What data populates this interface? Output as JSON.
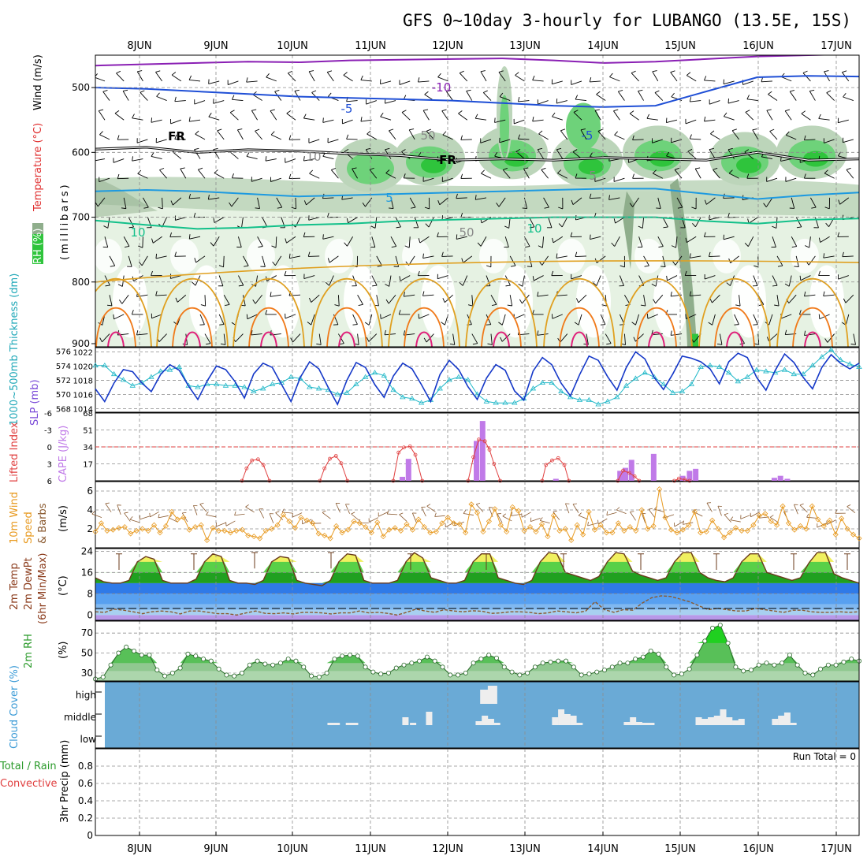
{
  "title": "GFS 0~10day 3-hourly for LUBANGO (13.5E, 15S)",
  "dates": [
    "8JUN",
    "9JUN",
    "10JUN",
    "11JUN",
    "12JUN",
    "13JUN",
    "14JUN",
    "15JUN",
    "16JUN",
    "17JUN"
  ],
  "run_total": "Run Total = 0",
  "colors": {
    "rh_light": "#e6f2e3",
    "rh_mid": "#bcd5ba",
    "rh_dark": "#8fae8c",
    "rh_green": "#6ed27a",
    "rh_bright": "#2fc43c",
    "wind": "#000000",
    "temp_purple": "#8a1fb4",
    "temp_blue": "#1f4fd6",
    "temp_cyan": "#1e9ae0",
    "temp_teal": "#13c08a",
    "temp_gold": "#e0a020",
    "temp_orange": "#f07a1a",
    "temp_magenta": "#e0207a",
    "slp": "#1538c8",
    "thickness": "#20b8c8",
    "cape": "#c07ae8",
    "lifted": "#e04040",
    "wind10": "#e89a20",
    "barb10": "#8a5a30",
    "temp2m": "#2a8a2a",
    "dewpt": "#8a5a30",
    "rh2m": "#38b038",
    "cloud_bg": "#6aaad6",
    "cloud_bar": "#eeeeee"
  },
  "chart_data": [
    {
      "type": "heatmap",
      "name_panel": "upper-air",
      "ylabel_parts": [
        "RH (%)",
        "Temperature (°C)",
        "Wind (m/s)"
      ],
      "ylabel_units": "(millibars)",
      "y_ticks": [
        500,
        600,
        700,
        800,
        900
      ],
      "ylim": [
        900,
        450
      ],
      "contour_labels": [
        "-10",
        "-5",
        "-5",
        "5",
        "10",
        "10",
        "FR",
        "FR",
        "50",
        "50",
        "10",
        "5"
      ],
      "temperature_levels": [
        {
          "label": "-10",
          "p": [
            466,
            464,
            462,
            460,
            461,
            458,
            457,
            456,
            455,
            458,
            462,
            460,
            456,
            452,
            450,
            448
          ]
        },
        {
          "label": "-5",
          "p": [
            500,
            502,
            506,
            510,
            514,
            516,
            518,
            520,
            524,
            528,
            530,
            528,
            506,
            484,
            482,
            483
          ]
        },
        {
          "label": "5",
          "p": [
            660,
            658,
            660,
            664,
            668,
            666,
            664,
            662,
            660,
            658,
            656,
            656,
            664,
            672,
            666,
            662
          ]
        },
        {
          "label": "10",
          "p": [
            705,
            712,
            718,
            716,
            712,
            710,
            706,
            704,
            702,
            700,
            700,
            700,
            706,
            710,
            704,
            702
          ]
        }
      ],
      "freezing_level": [
        595,
        592,
        600,
        596,
        598,
        602,
        605,
        612,
        610,
        612,
        608,
        610,
        612,
        600,
        612,
        610
      ]
    },
    {
      "type": "line",
      "name_panel": "slp-thickness",
      "ylabel_left": "1000~500mb Thickness (dm)",
      "ylabel_right": "SLP (mb)",
      "thickness_ticks": [
        568,
        570,
        572,
        574,
        576
      ],
      "slp_ticks": [
        1014,
        1016,
        1018,
        1020,
        1022
      ],
      "thickness_ylim": [
        567.5,
        576.5
      ],
      "slp_ylim": [
        1013.5,
        1022.6
      ],
      "slp": [
        1016.8,
        1015.0,
        1017.6,
        1019.5,
        1019.2,
        1017.6,
        1016.4,
        1018.8,
        1020.2,
        1019.4,
        1017.2,
        1015.3,
        1017.9,
        1020.0,
        1019.5,
        1017.8,
        1015.5,
        1018.9,
        1020.4,
        1019.8,
        1017.4,
        1015.0,
        1018.4,
        1020.6,
        1019.6,
        1017.0,
        1014.6,
        1018.0,
        1020.5,
        1019.8,
        1017.4,
        1015.6,
        1018.6,
        1020.4,
        1019.6,
        1017.4,
        1015.0,
        1018.8,
        1020.8,
        1019.5,
        1017.1,
        1015.3,
        1018.3,
        1020.2,
        1019.4,
        1016.5,
        1015.2,
        1019.3,
        1021.2,
        1020.2,
        1017.6,
        1015.8,
        1018.8,
        1021.4,
        1020.8,
        1018.5,
        1016.6,
        1019.8,
        1022.0,
        1021.0,
        1018.4,
        1016.7,
        1018.9,
        1021.4,
        1021.1,
        1020.6,
        1019.6,
        1017.5,
        1020.6,
        1021.8,
        1021.2,
        1018.4,
        1016.6,
        1019.4,
        1021.7,
        1020.5,
        1018.4,
        1016.8,
        1019.8,
        1021.6,
        1020.4,
        1019.6,
        1020.4
      ],
      "thickness": [
        574.0,
        574.0,
        572.8,
        572.0,
        571.2,
        571.6,
        572.4,
        573.2,
        573.4,
        573.8,
        571.2,
        571.0,
        571.4,
        571.4,
        571.2,
        571.2,
        571.0,
        570.4,
        570.8,
        571.4,
        571.6,
        572.4,
        572.2,
        571.0,
        570.8,
        570.6,
        570.0,
        570.2,
        571.4,
        572.4,
        573.0,
        572.6,
        570.6,
        569.6,
        569.4,
        568.8,
        569.2,
        570.8,
        572.0,
        572.4,
        572.0,
        570.0,
        569.0,
        568.8,
        568.8,
        568.8,
        569.4,
        570.8,
        571.6,
        571.6,
        570.4,
        569.6,
        569.2,
        569.2,
        568.6,
        569.0,
        569.6,
        571.2,
        572.2,
        573.0,
        572.4,
        571.4,
        570.2,
        570.4,
        571.4,
        573.8,
        574.0,
        573.8,
        573.0,
        571.8,
        572.4,
        573.4,
        573.2,
        573.0,
        573.4,
        572.8,
        572.8,
        574.0,
        575.2,
        576.2,
        574.8,
        574.2,
        573.8
      ]
    },
    {
      "type": "bar",
      "name_panel": "cape-lifted",
      "ylabel_left": "Lifted Index",
      "ylabel_right": "CAPE (J/kg)",
      "li_ticks": [
        "-6",
        "-3",
        "0",
        "3",
        "6"
      ],
      "cape_ticks": [
        "68",
        "51",
        "34",
        "17",
        "0"
      ],
      "cape_ylim": [
        0,
        68
      ],
      "cape": [
        {
          "x": 40.2,
          "v": 4
        },
        {
          "x": 41.0,
          "v": 22
        },
        {
          "x": 49.9,
          "v": 40
        },
        {
          "x": 50.7,
          "v": 60
        },
        {
          "x": 60.3,
          "v": 2
        },
        {
          "x": 68.7,
          "v": 10
        },
        {
          "x": 69.4,
          "v": 13
        },
        {
          "x": 70.2,
          "v": 21
        },
        {
          "x": 73.1,
          "v": 27
        },
        {
          "x": 76.9,
          "v": 5
        },
        {
          "x": 77.8,
          "v": 10
        },
        {
          "x": 78.6,
          "v": 12
        },
        {
          "x": 88.9,
          "v": 3
        },
        {
          "x": 89.7,
          "v": 5
        },
        {
          "x": 90.6,
          "v": 2
        }
      ],
      "li_segments": [
        [
          [
            19.2,
            6
          ],
          [
            19.8,
            3.8
          ],
          [
            20.5,
            2.4
          ],
          [
            21.3,
            2.2
          ],
          [
            22.0,
            3.2
          ],
          [
            22.8,
            6
          ]
        ],
        [
          [
            29.4,
            6
          ],
          [
            30.0,
            3.8
          ],
          [
            30.7,
            2.1
          ],
          [
            31.5,
            1.6
          ],
          [
            32.2,
            2.9
          ],
          [
            33.0,
            6
          ]
        ],
        [
          [
            39.0,
            6
          ],
          [
            39.7,
            1.0
          ],
          [
            40.4,
            0.1
          ],
          [
            41.2,
            -0.1
          ],
          [
            41.9,
            1.4
          ],
          [
            42.8,
            6
          ]
        ],
        [
          [
            48.8,
            6
          ],
          [
            49.5,
            1.8
          ],
          [
            50.2,
            -1.3
          ],
          [
            51.0,
            -1.0
          ],
          [
            51.6,
            0.5
          ],
          [
            52.2,
            3.0
          ],
          [
            53.0,
            6
          ]
        ],
        [
          [
            58.5,
            6
          ],
          [
            59.0,
            3.2
          ],
          [
            59.8,
            2.4
          ],
          [
            60.6,
            2.0
          ],
          [
            61.4,
            3.2
          ],
          [
            62.0,
            6
          ]
        ],
        [
          [
            68.4,
            6
          ],
          [
            69.1,
            4.2
          ],
          [
            69.9,
            4.6
          ],
          [
            70.6,
            5.2
          ],
          [
            71.2,
            6
          ]
        ],
        [
          [
            75.8,
            6
          ],
          [
            76.4,
            5.6
          ],
          [
            77.2,
            5.8
          ],
          [
            77.8,
            6
          ]
        ]
      ]
    },
    {
      "type": "line",
      "name_panel": "wind10",
      "ylabel": "10m Wind Speed & Barbs (m/s)",
      "y_ticks": [
        2,
        4,
        6
      ],
      "ylim": [
        0,
        7
      ],
      "speed": [
        1.7,
        2.6,
        1.8,
        1.9,
        2.1,
        2.2,
        1.5,
        1.8,
        2.0,
        1.8,
        2.4,
        1.6,
        2.3,
        3.8,
        3.0,
        3.2,
        1.9,
        2.2,
        2.4,
        0.8,
        2.1,
        1.8,
        1.8,
        1.6,
        1.8,
        1.9,
        1.3,
        1.2,
        1.0,
        1.8,
        2.0,
        2.4,
        3.5,
        2.8,
        2.1,
        3.2,
        2.9,
        2.6,
        1.5,
        1.3,
        1.0,
        2.3,
        1.6,
        1.9,
        2.8,
        2.6,
        2.2,
        1.6,
        2.7,
        1.2,
        1.9,
        2.1,
        1.8,
        2.5,
        1.9,
        3.0,
        2.2,
        1.6,
        1.7,
        2.6,
        3.2,
        2.6,
        2.5,
        1.6,
        4.6,
        3.7,
        1.7,
        2.8,
        4.1,
        2.4,
        1.7,
        4.3,
        3.9,
        1.8,
        2.2,
        1.7,
        2.5,
        1.2,
        3.4,
        1.8,
        2.0,
        0.8,
        2.4,
        1.4,
        3.8,
        1.9,
        2.4,
        1.6,
        1.6,
        2.6,
        1.8,
        2.2,
        1.8,
        4.0,
        2.0,
        2.3,
        6.2,
        3.2,
        1.9,
        1.6,
        1.9,
        2.4,
        3.8,
        1.6,
        1.7,
        2.9,
        2.0,
        1.1,
        1.6,
        2.1,
        1.8,
        1.8,
        2.4,
        3.4,
        3.6,
        2.8,
        2.4,
        4.4,
        2.6,
        1.9,
        2.3,
        2.0,
        4.4,
        3.0,
        2.3,
        2.9,
        1.4,
        3.1,
        2.0,
        1.4,
        1.0
      ]
    },
    {
      "type": "area",
      "name_panel": "temp2m",
      "ylabel": "2m Temp 2m DewPt (6hr Min/Max) (°C)",
      "y_ticks": [
        0,
        8,
        16,
        24
      ],
      "ylim": [
        -2,
        25
      ],
      "temp": [
        14,
        12.5,
        12,
        12,
        13,
        20,
        22,
        21,
        13,
        12,
        12,
        12,
        13.5,
        20,
        23,
        22,
        13,
        12,
        12,
        11.5,
        13,
        20,
        22,
        21.5,
        13,
        12,
        11.5,
        11,
        13,
        20,
        23,
        22.5,
        13,
        12,
        12,
        12,
        13,
        20,
        23.5,
        21.5,
        14,
        13,
        12,
        12,
        13,
        20,
        23,
        23,
        14,
        13,
        12,
        11.5,
        13,
        20,
        23.5,
        23,
        16,
        15,
        14,
        13,
        14.5,
        20,
        23.5,
        23,
        16.5,
        15,
        14,
        13,
        14,
        20,
        23.5,
        23.5,
        16,
        14,
        13,
        12.5,
        14,
        20,
        23,
        23,
        16,
        15,
        14,
        13,
        14,
        19.5,
        23.5,
        23.5,
        15.5,
        14,
        13,
        12
      ],
      "max_marks": [
        23,
        23,
        23.5,
        23.5,
        23,
        23,
        23,
        23,
        23,
        23,
        23
      ],
      "dewpt": [
        1.2,
        1.0,
        2.2,
        1.8,
        1.2,
        0.5,
        1.2,
        1.5,
        1.2,
        0.4,
        1.5,
        1.5,
        1.0,
        0.5,
        0.5,
        0.0,
        0.8,
        1.5,
        0.6,
        0.5,
        0.8,
        0.4,
        1.0,
        1.0,
        0.8,
        0.4,
        0.8,
        0.8,
        1.5,
        0.8,
        1.0,
        0.6,
        0.0,
        1.0,
        2.2,
        1.5,
        1.0,
        2.0,
        1.5,
        1.2,
        1.6,
        1.4,
        0.6,
        0.8,
        1.2,
        1.2,
        1.0,
        0.5,
        0.8,
        1.5,
        1.2,
        0.8,
        1.5,
        5.0,
        2.0,
        1.0,
        2.0,
        1.8,
        4.5,
        6.5,
        7.2,
        7.0,
        6.0,
        5.0,
        3.5,
        2.0,
        2.5,
        2.0,
        1.5,
        1.5,
        2.5,
        2.0,
        1.5,
        1.0,
        1.8,
        1.8,
        1.2,
        1.0,
        1.0,
        1.2,
        1.0,
        1.2
      ]
    },
    {
      "type": "area",
      "name_panel": "rh2m",
      "ylabel": "2m RH (%)",
      "y_ticks": [
        30,
        50,
        70
      ],
      "ylim": [
        22,
        82
      ],
      "rh": [
        24,
        26,
        38,
        50,
        56,
        52,
        48,
        48,
        33,
        27,
        30,
        35,
        49,
        47,
        44,
        42,
        34,
        28,
        27,
        30,
        38,
        42,
        39,
        38,
        40,
        44,
        42,
        36,
        27,
        26,
        30,
        44,
        47,
        48,
        47,
        36,
        31,
        29,
        30,
        35,
        38,
        40,
        42,
        46,
        42,
        36,
        28,
        28,
        30,
        40,
        44,
        48,
        45,
        36,
        31,
        28,
        30,
        36,
        40,
        41,
        42,
        42,
        36,
        28,
        29,
        31,
        33,
        36,
        40,
        40,
        44,
        46,
        52,
        49,
        36,
        28,
        29,
        34,
        48,
        62,
        75,
        78,
        60,
        36,
        32,
        33,
        38,
        40,
        38,
        40,
        48,
        38,
        30,
        28,
        34,
        38,
        38,
        41,
        44,
        42
      ]
    },
    {
      "type": "bar",
      "name_panel": "cloud",
      "ylabel": "Cloud Cover (%)",
      "levels": [
        "high",
        "middle",
        "low"
      ],
      "high": [
        {
          "x": 51.0,
          "v": 1.8
        },
        {
          "x": 52.0,
          "v": 2.3
        }
      ],
      "middle": [
        {
          "x": 30.8,
          "v": 0.3
        },
        {
          "x": 31.6,
          "v": 0.3
        },
        {
          "x": 33.2,
          "v": 0.3
        },
        {
          "x": 34.0,
          "v": 0.3
        },
        {
          "x": 40.6,
          "v": 1.0
        },
        {
          "x": 41.6,
          "v": 0.3
        },
        {
          "x": 43.7,
          "v": 1.7
        },
        {
          "x": 50.2,
          "v": 0.5
        },
        {
          "x": 51.0,
          "v": 1.2
        },
        {
          "x": 51.8,
          "v": 0.8
        },
        {
          "x": 52.6,
          "v": 0.3
        },
        {
          "x": 60.2,
          "v": 1.0
        },
        {
          "x": 61.0,
          "v": 2.0
        },
        {
          "x": 61.8,
          "v": 1.4
        },
        {
          "x": 62.6,
          "v": 1.2
        },
        {
          "x": 63.4,
          "v": 0.3
        },
        {
          "x": 69.6,
          "v": 0.4
        },
        {
          "x": 70.4,
          "v": 1.0
        },
        {
          "x": 71.2,
          "v": 0.4
        },
        {
          "x": 72.0,
          "v": 0.3
        },
        {
          "x": 72.8,
          "v": 0.3
        },
        {
          "x": 79.0,
          "v": 1.0
        },
        {
          "x": 79.8,
          "v": 0.8
        },
        {
          "x": 80.6,
          "v": 1.0
        },
        {
          "x": 81.4,
          "v": 1.2
        },
        {
          "x": 82.2,
          "v": 2.0
        },
        {
          "x": 83.0,
          "v": 1.0
        },
        {
          "x": 83.8,
          "v": 0.6
        },
        {
          "x": 84.6,
          "v": 0.8
        },
        {
          "x": 89.0,
          "v": 0.8
        },
        {
          "x": 89.8,
          "v": 1.2
        },
        {
          "x": 90.6,
          "v": 1.6
        },
        {
          "x": 91.4,
          "v": 0.3
        }
      ]
    },
    {
      "type": "bar",
      "name_panel": "precip",
      "ylabel_left": "Total / Rain",
      "ylabel_sub": "Convective",
      "ylabel": "3hr Precip (mm)",
      "y_ticks": [
        "0",
        "0.2",
        "0.4",
        "0.6",
        "0.8"
      ],
      "ylim": [
        0,
        1
      ],
      "values": []
    }
  ]
}
